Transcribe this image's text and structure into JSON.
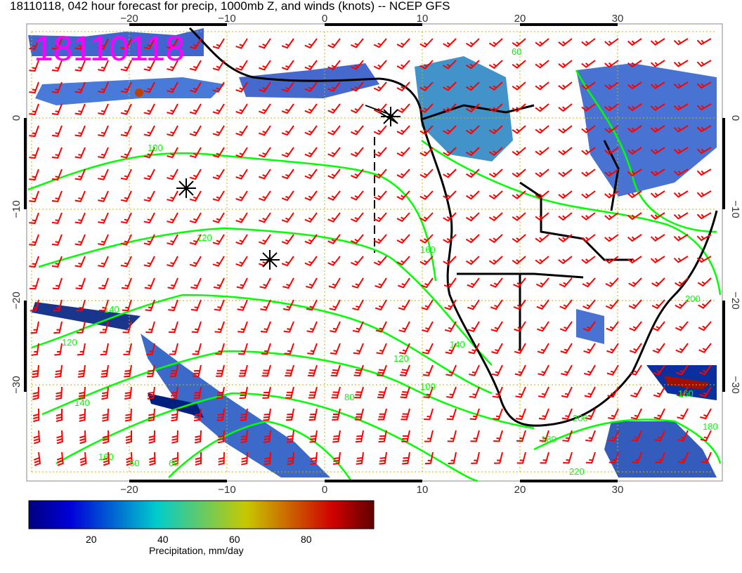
{
  "title": "18110118, 042 hour forecast for precip, 1000mb Z, and winds (knots) -- NCEP GFS",
  "stamp": "18110118",
  "stamp_color": "#ff00ff",
  "lon_ticks": [
    "−20",
    "−10",
    "0",
    "10",
    "20",
    "30"
  ],
  "lat_ticks": [
    "0",
    "−10",
    "−20",
    "−30"
  ],
  "contour_labels": [
    "100",
    "120",
    "140",
    "120",
    "140",
    "160",
    "60",
    "60",
    "80",
    "100",
    "120",
    "140",
    "160",
    "180",
    "200",
    "220",
    "60",
    "160",
    "180",
    "200"
  ],
  "colorbar": {
    "ticks": [
      "20",
      "40",
      "60",
      "80"
    ],
    "label": "Precipitation, mm/day",
    "colors": [
      "#00007f",
      "#0000d8",
      "#00cccc",
      "#c8c800",
      "#d00000",
      "#600000"
    ]
  },
  "colors": {
    "contour": "#00ff00",
    "wind_barb": "#ff0000",
    "coast": "#000000",
    "grid": "#c8b400"
  }
}
